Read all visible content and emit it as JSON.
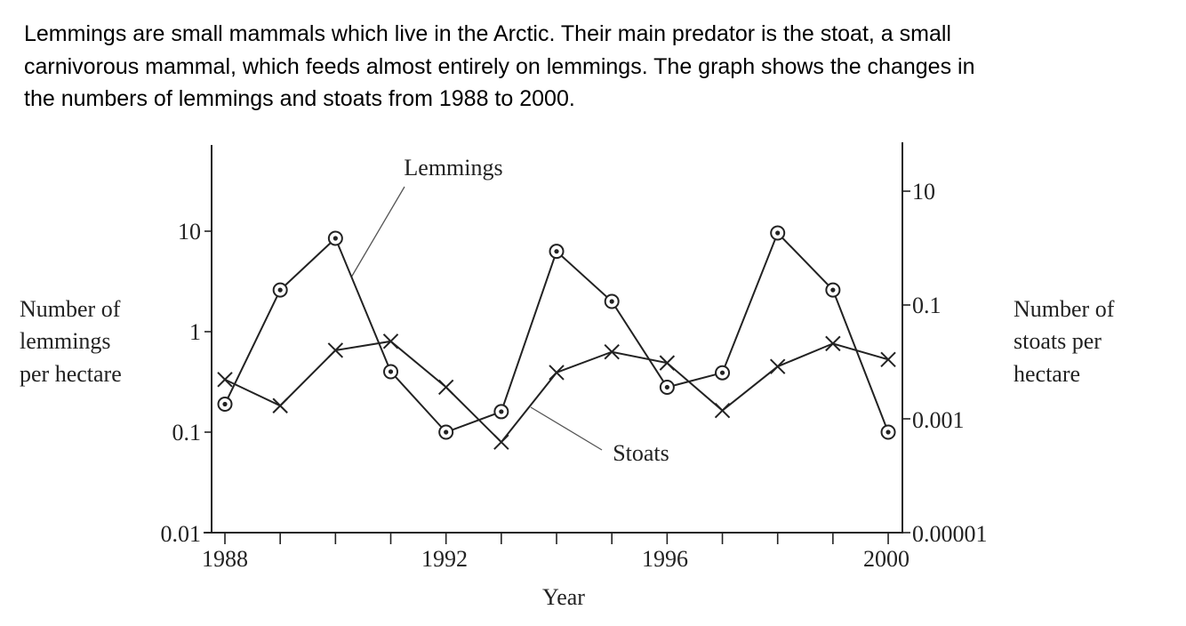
{
  "intro": {
    "lines": [
      "Lemmings are small mammals which live in the Arctic. Their main predator is the stoat, a small",
      "carnivorous mammal, which feeds almost entirely on lemmings. The graph shows the changes in",
      "the numbers of lemmings and stoats from 1988 to 2000."
    ]
  },
  "chart_data": {
    "type": "line",
    "xlabel": "Year",
    "ylabel_left": [
      "Number of",
      "lemmings",
      "per hectare"
    ],
    "ylabel_right": [
      "Number of",
      "stoats per",
      "hectare"
    ],
    "x": [
      1988,
      1989,
      1990,
      1991,
      1992,
      1993,
      1994,
      1995,
      1996,
      1997,
      1998,
      1999,
      2000
    ],
    "x_tick_labels": [
      "1988",
      "1992",
      "1996",
      "2000"
    ],
    "y_left_scale": "log",
    "y_left_lim": [
      0.01,
      10
    ],
    "y_left_tick_labels": [
      "10",
      "1",
      "0.1",
      "0.01"
    ],
    "y_right_scale": "log",
    "y_right_lim": [
      1e-05,
      10
    ],
    "y_right_tick_labels": [
      "10",
      "0.1",
      "0.001",
      "0.00001"
    ],
    "grid": false,
    "series": [
      {
        "name": "Lemmings",
        "axis": "left",
        "marker": "circle-dot",
        "values": [
          0.19,
          2.6,
          8.5,
          0.4,
          0.1,
          0.16,
          6.3,
          2.0,
          0.28,
          0.39,
          9.6,
          2.6,
          0.1
        ]
      },
      {
        "name": "Stoats",
        "axis": "right",
        "marker": "cross",
        "values": [
          0.0049,
          0.0017,
          0.016,
          0.023,
          0.0036,
          0.00039,
          0.0065,
          0.015,
          0.0096,
          0.0014,
          0.0083,
          0.021,
          0.011
        ]
      }
    ],
    "colors": {
      "line": "#222222"
    }
  }
}
